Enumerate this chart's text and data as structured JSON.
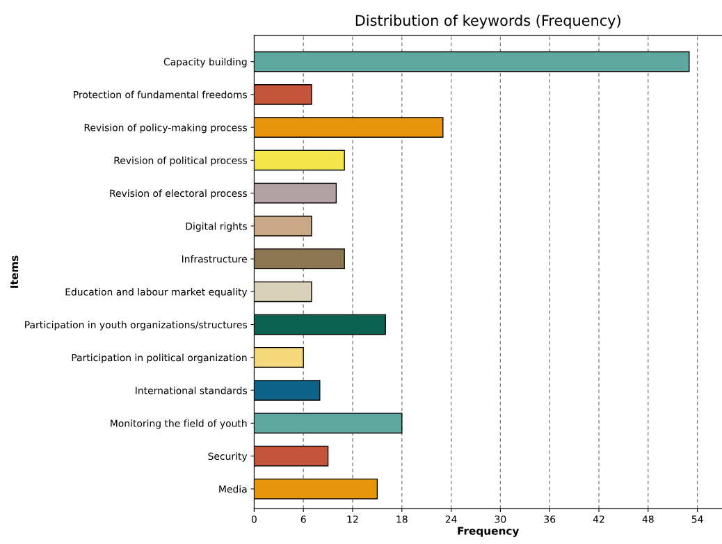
{
  "chart_data": {
    "type": "bar",
    "orientation": "horizontal",
    "title": "Distribution of keywords (Frequency)",
    "xlabel": "Frequency",
    "ylabel": "Items",
    "categories": [
      "Capacity building",
      "Protection of fundamental freedoms",
      "Revision of policy-making process",
      "Revision of political process",
      "Revision of electoral process",
      "Digital rights",
      "Infrastructure",
      "Education and labour market equality",
      "Participation in youth organizations/structures",
      "Participation in political organization",
      "International standards",
      "Monitoring the field of youth",
      "Security",
      "Media"
    ],
    "values": [
      53,
      7,
      23,
      11,
      10,
      7,
      11,
      7,
      16,
      6,
      8,
      18,
      9,
      15
    ],
    "colors": [
      "#5fa8a0",
      "#c4553a",
      "#e8950e",
      "#f2e64c",
      "#b3a2a6",
      "#c9a887",
      "#8b7552",
      "#d8d0b8",
      "#0d6150",
      "#f5d97c",
      "#0f6389",
      "#5fa8a0",
      "#c4553a",
      "#e8950e"
    ],
    "xlim": [
      0,
      57
    ],
    "xticks": [
      0,
      6,
      12,
      18,
      24,
      30,
      36,
      42,
      48,
      54
    ],
    "grid": "x"
  }
}
